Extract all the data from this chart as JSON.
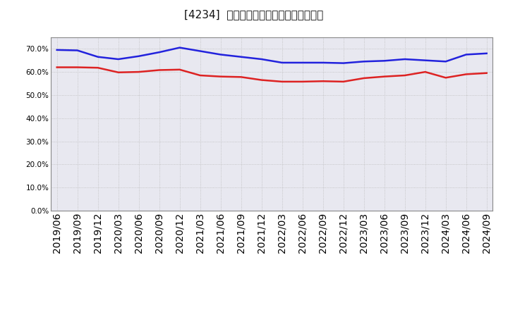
{
  "title": "[4234]  固定比率、固定長期適合率の推移",
  "x_labels": [
    "2019/06",
    "2019/09",
    "2019/12",
    "2020/03",
    "2020/06",
    "2020/09",
    "2020/12",
    "2021/03",
    "2021/06",
    "2021/09",
    "2021/12",
    "2022/03",
    "2022/06",
    "2022/09",
    "2022/12",
    "2023/03",
    "2023/06",
    "2023/09",
    "2023/12",
    "2024/03",
    "2024/06",
    "2024/09"
  ],
  "fixed_ratio": [
    69.5,
    69.3,
    66.5,
    65.5,
    66.8,
    68.5,
    70.5,
    69.0,
    67.5,
    66.5,
    65.5,
    64.0,
    64.0,
    64.0,
    63.8,
    64.5,
    64.8,
    65.5,
    65.0,
    64.5,
    67.5,
    68.0
  ],
  "fixed_long_ratio": [
    62.0,
    62.0,
    61.8,
    59.8,
    60.0,
    60.8,
    61.0,
    58.5,
    58.0,
    57.8,
    56.5,
    55.8,
    55.8,
    56.0,
    55.8,
    57.3,
    58.0,
    58.5,
    60.0,
    57.5,
    59.0,
    59.5
  ],
  "line1_color": "#2222dd",
  "line2_color": "#dd2222",
  "line1_label": "固定比率",
  "line2_label": "固定長期適合率",
  "ylim": [
    0.0,
    0.75
  ],
  "yticks": [
    0.0,
    0.1,
    0.2,
    0.3,
    0.4,
    0.5,
    0.6,
    0.7
  ],
  "bg_color": "#ffffff",
  "grid_color": "#bbbbbb",
  "plot_bg_color": "#e8e8f0"
}
